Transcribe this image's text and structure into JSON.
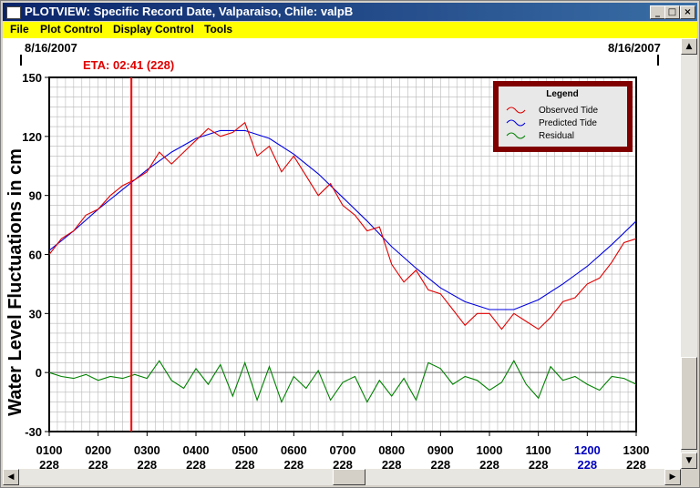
{
  "window": {
    "title": "PLOTVIEW: Specific Record Date, Valparaiso, Chile: valpB",
    "minimize_icon": "minimize-icon",
    "maximize_icon": "maximize-icon",
    "close_icon": "close-icon"
  },
  "menu": {
    "items": [
      "File",
      "Plot Control",
      "Display Control",
      "Tools"
    ]
  },
  "header": {
    "date_left": "8/16/2007",
    "date_right": "8/16/2007",
    "eta_label": "ETA: 02:41 (228)"
  },
  "colors": {
    "observed": "#e00000",
    "predicted": "#0000e0",
    "residual": "#008000",
    "eta_line": "#ff0000",
    "highlight_tick": "#0000c0"
  },
  "chart_data": {
    "type": "line",
    "ylabel": "Water Level Fluctuations in cm",
    "ylim": [
      -30,
      150
    ],
    "y_ticks": [
      "150",
      "120",
      "90",
      "60",
      "30",
      "0",
      "-30"
    ],
    "y_tick_values": [
      150,
      120,
      90,
      60,
      30,
      0,
      -30
    ],
    "xlim": [
      1.0,
      13.0
    ],
    "x_ticks": [
      {
        "time": "0100",
        "day": "228"
      },
      {
        "time": "0200",
        "day": "228"
      },
      {
        "time": "0300",
        "day": "228"
      },
      {
        "time": "0400",
        "day": "228"
      },
      {
        "time": "0500",
        "day": "228"
      },
      {
        "time": "0600",
        "day": "228"
      },
      {
        "time": "0700",
        "day": "228"
      },
      {
        "time": "0800",
        "day": "228"
      },
      {
        "time": "0900",
        "day": "228"
      },
      {
        "time": "1000",
        "day": "228"
      },
      {
        "time": "1100",
        "day": "228"
      },
      {
        "time": "1200",
        "day": "228",
        "highlight": true
      },
      {
        "time": "1300",
        "day": "228"
      }
    ],
    "eta_hour": 2.68,
    "grid": true,
    "legend": {
      "title": "Legend",
      "position": "top-right",
      "entries": [
        "Observed Tide",
        "Predicted Tide",
        "Residual"
      ]
    },
    "series": [
      {
        "name": "Predicted Tide",
        "x": [
          1.0,
          1.5,
          2.0,
          2.5,
          3.0,
          3.5,
          4.0,
          4.5,
          5.0,
          5.5,
          6.0,
          6.5,
          7.0,
          7.5,
          8.0,
          8.5,
          9.0,
          9.5,
          10.0,
          10.5,
          11.0,
          11.5,
          12.0,
          12.5,
          13.0
        ],
        "values": [
          62,
          72,
          83,
          93,
          103,
          112,
          119,
          123,
          123,
          119,
          111,
          101,
          89,
          77,
          64,
          53,
          43,
          36,
          32,
          32,
          37,
          45,
          54,
          65,
          77
        ]
      },
      {
        "name": "Observed Tide",
        "x": [
          1.0,
          1.25,
          1.5,
          1.75,
          2.0,
          2.25,
          2.5,
          2.75,
          3.0,
          3.25,
          3.5,
          3.75,
          4.0,
          4.25,
          4.5,
          4.75,
          5.0,
          5.25,
          5.5,
          5.75,
          6.0,
          6.25,
          6.5,
          6.75,
          7.0,
          7.25,
          7.5,
          7.75,
          8.0,
          8.25,
          8.5,
          8.75,
          9.0,
          9.25,
          9.5,
          9.75,
          10.0,
          10.25,
          10.5,
          10.75,
          11.0,
          11.25,
          11.5,
          11.75,
          12.0,
          12.25,
          12.5,
          12.75,
          13.0
        ],
        "values": [
          60,
          68,
          72,
          80,
          83,
          90,
          95,
          98,
          102,
          112,
          106,
          112,
          118,
          124,
          120,
          122,
          127,
          110,
          115,
          102,
          110,
          100,
          90,
          96,
          85,
          80,
          72,
          74,
          55,
          46,
          52,
          42,
          40,
          32,
          24,
          30,
          30,
          22,
          30,
          26,
          22,
          28,
          36,
          38,
          45,
          48,
          56,
          66,
          68
        ]
      },
      {
        "name": "Residual",
        "x": [
          1.0,
          1.25,
          1.5,
          1.75,
          2.0,
          2.25,
          2.5,
          2.75,
          3.0,
          3.25,
          3.5,
          3.75,
          4.0,
          4.25,
          4.5,
          4.75,
          5.0,
          5.25,
          5.5,
          5.75,
          6.0,
          6.25,
          6.5,
          6.75,
          7.0,
          7.25,
          7.5,
          7.75,
          8.0,
          8.25,
          8.5,
          8.75,
          9.0,
          9.25,
          9.5,
          9.75,
          10.0,
          10.25,
          10.5,
          10.75,
          11.0,
          11.25,
          11.5,
          11.75,
          12.0,
          12.25,
          12.5,
          12.75,
          13.0
        ],
        "values": [
          0,
          -2,
          -3,
          -1,
          -4,
          -2,
          -3,
          -1,
          -3,
          6,
          -4,
          -8,
          2,
          -6,
          4,
          -12,
          5,
          -14,
          3,
          -15,
          -2,
          -8,
          1,
          -14,
          -5,
          -2,
          -15,
          -4,
          -12,
          -3,
          -14,
          5,
          2,
          -6,
          -2,
          -4,
          -9,
          -5,
          6,
          -6,
          -13,
          3,
          -4,
          -2,
          -6,
          -9,
          -2,
          -3,
          -6
        ]
      }
    ]
  }
}
